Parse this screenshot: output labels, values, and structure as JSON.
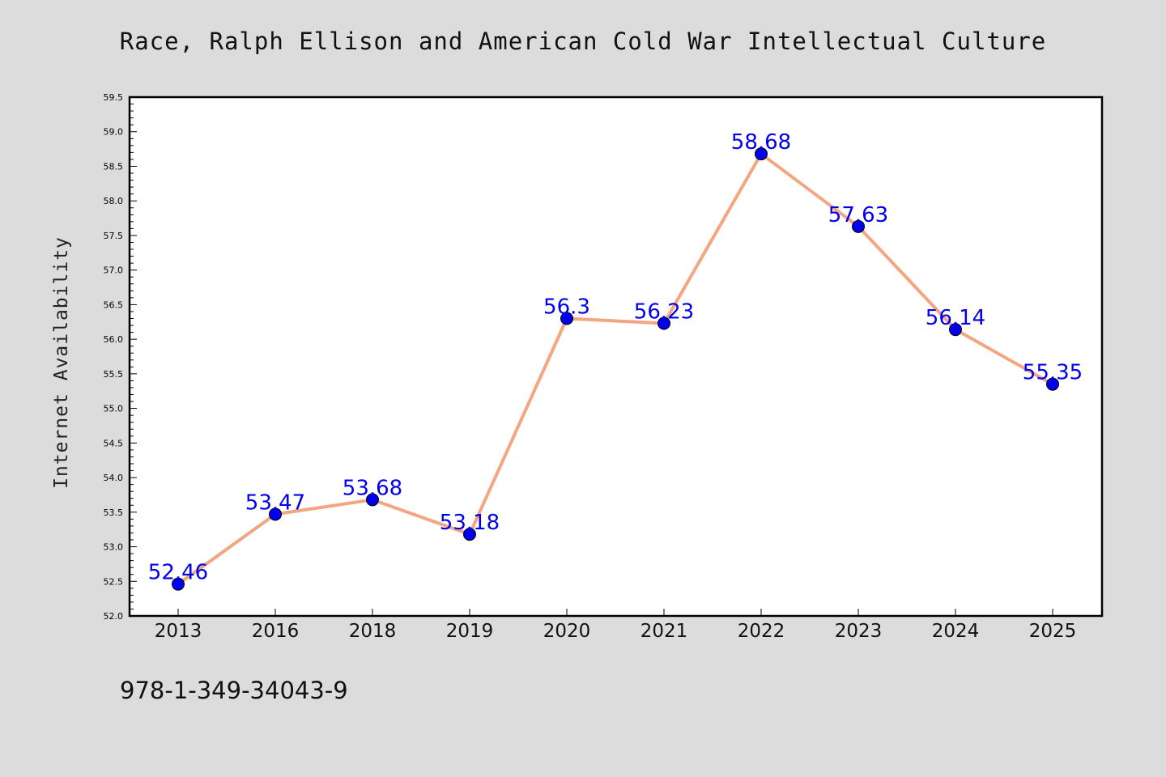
{
  "header": {
    "title": "Race, Ralph Ellison and American Cold War Intellectual Culture"
  },
  "footer": {
    "isbn": "978-1-349-34043-9"
  },
  "chart_data": {
    "type": "line",
    "title": "Race, Ralph Ellison and American Cold War Intellectual Culture",
    "xlabel": "",
    "ylabel": "Internet Availability",
    "categories": [
      "2013",
      "2016",
      "2018",
      "2019",
      "2020",
      "2021",
      "2022",
      "2023",
      "2024",
      "2025"
    ],
    "series": [
      {
        "values": [
          52.46,
          53.47,
          53.68,
          53.18,
          56.3,
          56.23,
          58.68,
          57.63,
          56.14,
          55.35
        ],
        "data_labels": [
          "52.46",
          "53.47",
          "53.68",
          "53.18",
          "56.3",
          "56.23",
          "58.68",
          "57.63",
          "56.14",
          "55.35"
        ],
        "line_color": "#f4a582",
        "marker_color": "#0000ee"
      }
    ],
    "ylim": [
      52.0,
      59.5
    ],
    "y_major_ticks": [
      "52.0",
      "52.5",
      "53.0",
      "53.5",
      "54.0",
      "54.5",
      "55.0",
      "55.5",
      "56.0",
      "56.5",
      "57.0",
      "57.5",
      "58.0",
      "58.5",
      "59.0",
      "59.5"
    ],
    "y_minor_step": 0.1,
    "grid": false,
    "legend": "none",
    "label_color": "#0000ee",
    "background_color": "#dcdcdc",
    "plot_background_color": "#ffffff"
  }
}
